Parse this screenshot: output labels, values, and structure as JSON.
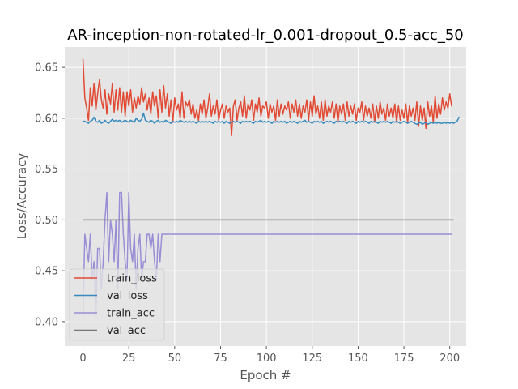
{
  "chart_data": {
    "type": "line",
    "title": "AR-inception-non-rotated-lr_0.001-dropout_0.5-acc_50",
    "xlabel": "Epoch #",
    "ylabel": "Loss/Accuracy",
    "xlim": [
      -9.95,
      208.95
    ],
    "ylim": [
      0.376,
      0.67
    ],
    "xticks": [
      0,
      25,
      50,
      75,
      100,
      125,
      150,
      175,
      200
    ],
    "yticks": [
      0.4,
      0.45,
      0.5,
      0.55,
      0.6,
      0.65
    ],
    "ytick_labels": [
      "0.40",
      "0.45",
      "0.50",
      "0.55",
      "0.60",
      "0.65"
    ],
    "grid": true,
    "legend_position": "lower-left",
    "style": "ggplot",
    "series": [
      {
        "name": "train_loss",
        "color": "#E24A33",
        "values": [
          0.658,
          0.62,
          0.61,
          0.598,
          0.63,
          0.612,
          0.634,
          0.608,
          0.624,
          0.638,
          0.618,
          0.61,
          0.628,
          0.604,
          0.624,
          0.614,
          0.634,
          0.606,
          0.628,
          0.608,
          0.63,
          0.606,
          0.626,
          0.602,
          0.626,
          0.612,
          0.628,
          0.606,
          0.62,
          0.61,
          0.622,
          0.614,
          0.63,
          0.616,
          0.624,
          0.608,
          0.62,
          0.604,
          0.626,
          0.612,
          0.622,
          0.6,
          0.628,
          0.606,
          0.632,
          0.61,
          0.624,
          0.602,
          0.618,
          0.596,
          0.62,
          0.608,
          0.614,
          0.6,
          0.626,
          0.6,
          0.616,
          0.612,
          0.618,
          0.604,
          0.614,
          0.6,
          0.608,
          0.598,
          0.614,
          0.604,
          0.618,
          0.6,
          0.61,
          0.624,
          0.602,
          0.612,
          0.604,
          0.618,
          0.598,
          0.608,
          0.614,
          0.6,
          0.612,
          0.606,
          0.61,
          0.583,
          0.612,
          0.618,
          0.598,
          0.61,
          0.616,
          0.602,
          0.622,
          0.6,
          0.614,
          0.608,
          0.618,
          0.598,
          0.614,
          0.606,
          0.62,
          0.602,
          0.612,
          0.61,
          0.616,
          0.6,
          0.614,
          0.606,
          0.612,
          0.598,
          0.618,
          0.602,
          0.614,
          0.604,
          0.612,
          0.608,
          0.616,
          0.6,
          0.614,
          0.606,
          0.618,
          0.602,
          0.614,
          0.6,
          0.612,
          0.606,
          0.618,
          0.598,
          0.616,
          0.602,
          0.622,
          0.604,
          0.612,
          0.6,
          0.616,
          0.598,
          0.618,
          0.602,
          0.612,
          0.606,
          0.616,
          0.6,
          0.614,
          0.596,
          0.612,
          0.604,
          0.614,
          0.598,
          0.616,
          0.602,
          0.612,
          0.604,
          0.614,
          0.598,
          0.61,
          0.606,
          0.616,
          0.598,
          0.612,
          0.602,
          0.61,
          0.6,
          0.614,
          0.596,
          0.612,
          0.6,
          0.616,
          0.604,
          0.61,
          0.598,
          0.614,
          0.602,
          0.61,
          0.6,
          0.614,
          0.596,
          0.612,
          0.598,
          0.608,
          0.6,
          0.614,
          0.596,
          0.612,
          0.602,
          0.61,
          0.598,
          0.616,
          0.592,
          0.612,
          0.598,
          0.61,
          0.59,
          0.616,
          0.602,
          0.612,
          0.596,
          0.622,
          0.6,
          0.614,
          0.604,
          0.62,
          0.608,
          0.616,
          0.61,
          0.624,
          0.612
        ]
      },
      {
        "name": "val_loss",
        "color": "#348ABD",
        "values": [
          0.597,
          0.597,
          0.596,
          0.595,
          0.597,
          0.598,
          0.601,
          0.597,
          0.596,
          0.598,
          0.595,
          0.596,
          0.598,
          0.596,
          0.595,
          0.597,
          0.599,
          0.597,
          0.598,
          0.597,
          0.598,
          0.596,
          0.597,
          0.598,
          0.597,
          0.596,
          0.598,
          0.597,
          0.596,
          0.6,
          0.598,
          0.597,
          0.599,
          0.605,
          0.598,
          0.597,
          0.596,
          0.598,
          0.597,
          0.595,
          0.597,
          0.598,
          0.596,
          0.597,
          0.596,
          0.598,
          0.597,
          0.596,
          0.595,
          0.597,
          0.596,
          0.597,
          0.596,
          0.598,
          0.597,
          0.596,
          0.597,
          0.596,
          0.597,
          0.596,
          0.597,
          0.596,
          0.595,
          0.597,
          0.596,
          0.597,
          0.596,
          0.597,
          0.596,
          0.597,
          0.596,
          0.595,
          0.597,
          0.596,
          0.597,
          0.596,
          0.597,
          0.595,
          0.597,
          0.596,
          0.595,
          0.596,
          0.597,
          0.596,
          0.597,
          0.596,
          0.595,
          0.597,
          0.596,
          0.597,
          0.596,
          0.597,
          0.596,
          0.595,
          0.597,
          0.596,
          0.597,
          0.598,
          0.596,
          0.597,
          0.596,
          0.597,
          0.596,
          0.595,
          0.597,
          0.596,
          0.597,
          0.596,
          0.597,
          0.596,
          0.597,
          0.595,
          0.596,
          0.597,
          0.596,
          0.597,
          0.596,
          0.595,
          0.597,
          0.596,
          0.597,
          0.598,
          0.596,
          0.597,
          0.596,
          0.595,
          0.597,
          0.596,
          0.597,
          0.596,
          0.597,
          0.595,
          0.596,
          0.597,
          0.596,
          0.597,
          0.596,
          0.595,
          0.597,
          0.596,
          0.597,
          0.596,
          0.597,
          0.596,
          0.595,
          0.597,
          0.596,
          0.597,
          0.596,
          0.595,
          0.597,
          0.596,
          0.597,
          0.596,
          0.597,
          0.596,
          0.595,
          0.597,
          0.596,
          0.597,
          0.596,
          0.595,
          0.597,
          0.596,
          0.597,
          0.596,
          0.597,
          0.596,
          0.595,
          0.597,
          0.596,
          0.597,
          0.596,
          0.595,
          0.596,
          0.597,
          0.596,
          0.595,
          0.596,
          0.597,
          0.596,
          0.595,
          0.594,
          0.595,
          0.596,
          0.594,
          0.595,
          0.596,
          0.594,
          0.595,
          0.596,
          0.595,
          0.596,
          0.595,
          0.596,
          0.595,
          0.595,
          0.596,
          0.595,
          0.596,
          0.595,
          0.596,
          0.595,
          0.596,
          0.597,
          0.601
        ]
      },
      {
        "name": "train_acc",
        "color": "#988ED5",
        "values": [
          0.405,
          0.486,
          0.472,
          0.459,
          0.486,
          0.441,
          0.459,
          0.405,
          0.472,
          0.472,
          0.432,
          0.459,
          0.5,
          0.527,
          0.459,
          0.5,
          0.486,
          0.459,
          0.5,
          0.432,
          0.527,
          0.527,
          0.486,
          0.459,
          0.441,
          0.527,
          0.472,
          0.459,
          0.486,
          0.432,
          0.472,
          0.486,
          0.441,
          0.459,
          0.459,
          0.486,
          0.486,
          0.472,
          0.486,
          0.459,
          0.441,
          0.486,
          0.459,
          0.486,
          0.486,
          0.486,
          0.486,
          0.486,
          0.486,
          0.486,
          0.486,
          0.486,
          0.486,
          0.486,
          0.486,
          0.486,
          0.486,
          0.486,
          0.486,
          0.486,
          0.486,
          0.486,
          0.486,
          0.486,
          0.486,
          0.486,
          0.486,
          0.486,
          0.486,
          0.486,
          0.486,
          0.486,
          0.486,
          0.486,
          0.486,
          0.486,
          0.486,
          0.486,
          0.486,
          0.486,
          0.486,
          0.486,
          0.486,
          0.486,
          0.486,
          0.486,
          0.486,
          0.486,
          0.486,
          0.486,
          0.486,
          0.486,
          0.486,
          0.486,
          0.486,
          0.486,
          0.486,
          0.486,
          0.486,
          0.486,
          0.486,
          0.486,
          0.486,
          0.486,
          0.486,
          0.486,
          0.486,
          0.486,
          0.486,
          0.486,
          0.486,
          0.486,
          0.486,
          0.486,
          0.486,
          0.486,
          0.486,
          0.486,
          0.486,
          0.486,
          0.486,
          0.486,
          0.486,
          0.486,
          0.486,
          0.486,
          0.486,
          0.486,
          0.486,
          0.486,
          0.486,
          0.486,
          0.486,
          0.486,
          0.486,
          0.486,
          0.486,
          0.486,
          0.486,
          0.486,
          0.486,
          0.486,
          0.486,
          0.486,
          0.486,
          0.486,
          0.486,
          0.486,
          0.486,
          0.486,
          0.486,
          0.486,
          0.486,
          0.486,
          0.486,
          0.486,
          0.486,
          0.486,
          0.486,
          0.486,
          0.486,
          0.486,
          0.486,
          0.486,
          0.486,
          0.486,
          0.486,
          0.486,
          0.486,
          0.486,
          0.486,
          0.486,
          0.486,
          0.486,
          0.486,
          0.486,
          0.486,
          0.486,
          0.486,
          0.486,
          0.486,
          0.486,
          0.486,
          0.486,
          0.486,
          0.486,
          0.486,
          0.486,
          0.486,
          0.486,
          0.486,
          0.486,
          0.486,
          0.486,
          0.486,
          0.486,
          0.486,
          0.486,
          0.486,
          0.486,
          0.486,
          0.486
        ]
      },
      {
        "name": "val_acc",
        "color": "#777777",
        "values": [
          0.5,
          0.5,
          0.5,
          0.5,
          0.5,
          0.5,
          0.5,
          0.5,
          0.5,
          0.5,
          0.5,
          0.5,
          0.5,
          0.5,
          0.5,
          0.5,
          0.5,
          0.5,
          0.5,
          0.5,
          0.5,
          0.5,
          0.5,
          0.5,
          0.5,
          0.5,
          0.5,
          0.5,
          0.5,
          0.5,
          0.5,
          0.5,
          0.5,
          0.5,
          0.5,
          0.5,
          0.5,
          0.5,
          0.5,
          0.5,
          0.5,
          0.5,
          0.5,
          0.5,
          0.5,
          0.5,
          0.5,
          0.5,
          0.5,
          0.5,
          0.5,
          0.5,
          0.5,
          0.5,
          0.5,
          0.5,
          0.5,
          0.5,
          0.5,
          0.5,
          0.5,
          0.5,
          0.5,
          0.5,
          0.5,
          0.5,
          0.5,
          0.5,
          0.5,
          0.5,
          0.5,
          0.5,
          0.5,
          0.5,
          0.5,
          0.5,
          0.5,
          0.5,
          0.5,
          0.5,
          0.5,
          0.5,
          0.5,
          0.5,
          0.5,
          0.5,
          0.5,
          0.5,
          0.5,
          0.5,
          0.5,
          0.5,
          0.5,
          0.5,
          0.5,
          0.5,
          0.5,
          0.5,
          0.5,
          0.5,
          0.5,
          0.5,
          0.5,
          0.5,
          0.5,
          0.5,
          0.5,
          0.5,
          0.5,
          0.5,
          0.5,
          0.5,
          0.5,
          0.5,
          0.5,
          0.5,
          0.5,
          0.5,
          0.5,
          0.5,
          0.5,
          0.5,
          0.5,
          0.5,
          0.5,
          0.5,
          0.5,
          0.5,
          0.5,
          0.5,
          0.5,
          0.5,
          0.5,
          0.5,
          0.5,
          0.5,
          0.5,
          0.5,
          0.5,
          0.5,
          0.5,
          0.5,
          0.5,
          0.5,
          0.5,
          0.5,
          0.5,
          0.5,
          0.5,
          0.5,
          0.5,
          0.5,
          0.5,
          0.5,
          0.5,
          0.5,
          0.5,
          0.5,
          0.5,
          0.5,
          0.5,
          0.5,
          0.5,
          0.5,
          0.5,
          0.5,
          0.5,
          0.5,
          0.5,
          0.5,
          0.5,
          0.5,
          0.5,
          0.5,
          0.5,
          0.5,
          0.5,
          0.5,
          0.5,
          0.5,
          0.5,
          0.5,
          0.5,
          0.5,
          0.5,
          0.5,
          0.5,
          0.5,
          0.5,
          0.5,
          0.5,
          0.5,
          0.5,
          0.5,
          0.5,
          0.5,
          0.5,
          0.5,
          0.5,
          0.5,
          0.5,
          0.5,
          0.5
        ]
      }
    ]
  }
}
